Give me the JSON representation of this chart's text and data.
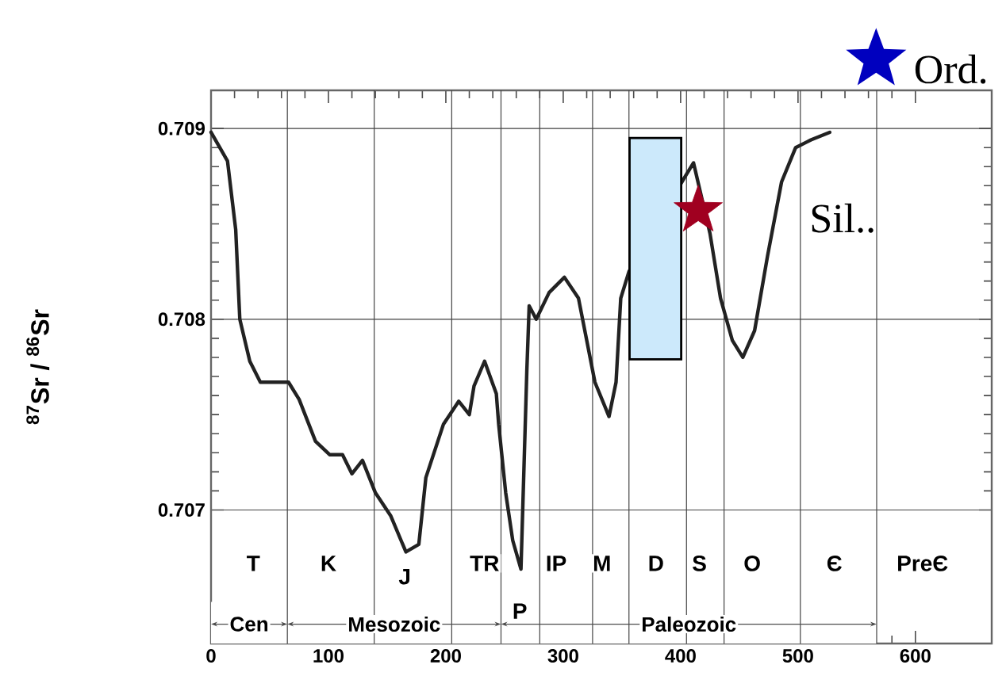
{
  "chart_data": {
    "type": "line",
    "ylabel": "$^{87}$Sr / $^{86}$Sr",
    "xlim": [
      0,
      665
    ],
    "ylim": [
      0.7063,
      0.7092
    ],
    "xticks": [
      0,
      100,
      200,
      300,
      400,
      500,
      600
    ],
    "yticks": [
      0.707,
      0.708,
      0.709
    ],
    "grid": "y",
    "legend": "bottom left",
    "marker": "none",
    "line_style": "solid",
    "series": [
      {
        "color": "#222222",
        "x": [
          0,
          14,
          21,
          24.5,
          33,
          42,
          66,
          75,
          89,
          101,
          112,
          120,
          129,
          140,
          153,
          166,
          177,
          183,
          198,
          211,
          220,
          224,
          233,
          243,
          245,
          251,
          257,
          264,
          269,
          271,
          277,
          288,
          301,
          313,
          327,
          339,
          345,
          349,
          356,
          404,
          411,
          425,
          434,
          444,
          453,
          463,
          474,
          486,
          498,
          511,
          527
        ],
        "values": [
          0.70898,
          0.70883,
          0.70847,
          0.708,
          0.70778,
          0.70767,
          0.70767,
          0.70758,
          0.70736,
          0.70729,
          0.70729,
          0.70719,
          0.70726,
          0.70709,
          0.70697,
          0.70678,
          0.70682,
          0.70717,
          0.70745,
          0.70757,
          0.7075,
          0.70765,
          0.70778,
          0.70761,
          0.70745,
          0.70709,
          0.70684,
          0.70669,
          0.70773,
          0.70807,
          0.708,
          0.70814,
          0.70822,
          0.70811,
          0.70767,
          0.70749,
          0.70767,
          0.70811,
          0.70825,
          0.70875,
          0.70882,
          0.70845,
          0.70811,
          0.70789,
          0.7078,
          0.70794,
          0.70833,
          0.70872,
          0.7089,
          0.70894,
          0.70898
        ]
      },
      {
        "type": "bar",
        "color": "#cce9fb",
        "x": [
          378.5
        ],
        "base": [
          0.70779
        ],
        "values": [
          0.00116
        ]
      },
      {
        "type": "scatter",
        "name": "Sil..",
        "color": "#a00020",
        "marker": "star",
        "x": [
          415
        ],
        "values": [
          0.70857
        ]
      }
    ],
    "ref_lines": [
      {
        "axis": "x",
        "value": 65,
        "color": "#444444"
      },
      {
        "axis": "x",
        "value": 139,
        "color": "#444444"
      },
      {
        "axis": "x",
        "value": 205,
        "color": "#444444"
      },
      {
        "axis": "x",
        "value": 247,
        "color": "#444444"
      },
      {
        "axis": "x",
        "value": 280,
        "color": "#444444"
      },
      {
        "axis": "x",
        "value": 325,
        "color": "#444444"
      },
      {
        "axis": "x",
        "value": 356,
        "color": "#444444"
      },
      {
        "axis": "x",
        "value": 405,
        "color": "#444444"
      },
      {
        "axis": "x",
        "value": 437,
        "color": "#444444"
      },
      {
        "axis": "x",
        "value": 502,
        "color": "#444444"
      },
      {
        "axis": "x",
        "value": 567,
        "color": "#444444"
      }
    ],
    "annotations": [
      {
        "text": "T",
        "x": 36,
        "y": 0.70672
      },
      {
        "text": "K",
        "x": 100,
        "y": 0.70672
      },
      {
        "text": "J",
        "x": 165,
        "y": 0.70665
      },
      {
        "text": "TR",
        "x": 233,
        "y": 0.70672
      },
      {
        "text": "P",
        "x": 263,
        "y": 0.70647
      },
      {
        "text": "IP",
        "x": 294,
        "y": 0.70672
      },
      {
        "text": "M",
        "x": 333,
        "y": 0.70672
      },
      {
        "text": "D",
        "x": 379,
        "y": 0.70672
      },
      {
        "text": "S",
        "x": 416,
        "y": 0.70672
      },
      {
        "text": "O",
        "x": 461,
        "y": 0.70672
      },
      {
        "text": "Є",
        "x": 531,
        "y": 0.70672
      },
      {
        "text": "PreЄ",
        "x": 606,
        "y": 0.70672
      },
      "Ord."
    ],
    "bands": [
      {
        "axis": "x",
        "from": 0,
        "to": 65,
        "label": "Cen",
        "color": "#ffffff"
      },
      {
        "axis": "x",
        "from": 65,
        "to": 247,
        "label": "Mesozoic",
        "color": "#ffffff"
      },
      {
        "axis": "x",
        "from": 247,
        "to": 567,
        "label": "Paleozoic",
        "color": "#ffffff"
      }
    ]
  }
}
